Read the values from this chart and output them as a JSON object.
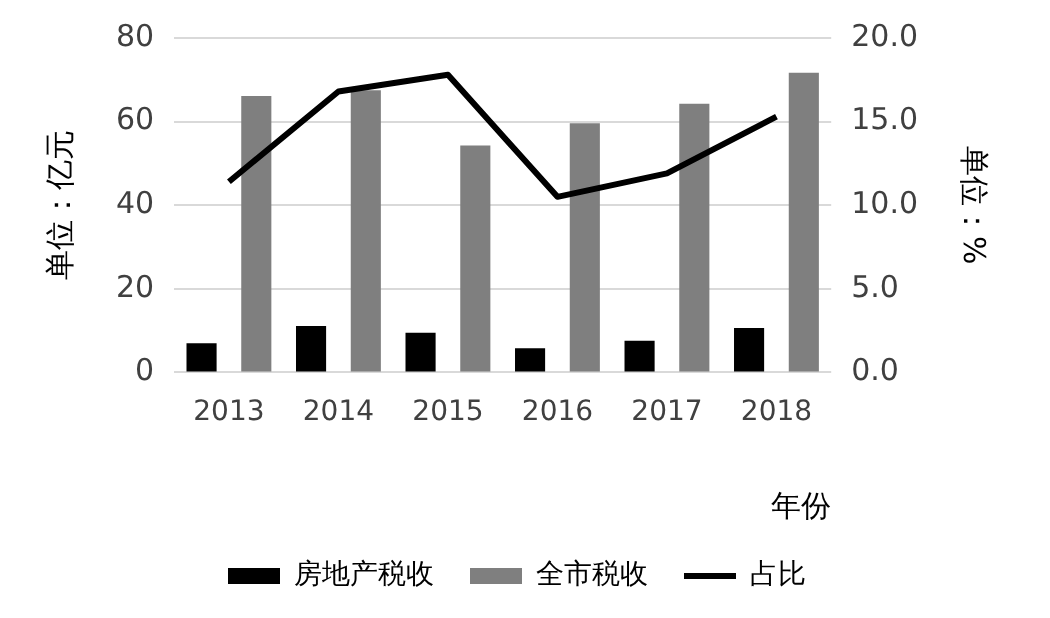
{
  "chart_data": {
    "type": "bar",
    "categories": [
      "2013",
      "2014",
      "2015",
      "2016",
      "2017",
      "2018"
    ],
    "xlabel": "年份",
    "ylabel": "单位：亿元",
    "y2label": "单位：%",
    "series": [
      {
        "name": "房地产税收",
        "color": "#000000",
        "values": [
          7.0,
          11.1,
          9.5,
          5.8,
          7.6,
          10.6
        ]
      },
      {
        "name": "全市税收",
        "color": "#7f7f7f",
        "values": [
          66.1,
          67.5,
          54.3,
          59.6,
          64.3,
          71.7
        ]
      },
      {
        "name": "占比",
        "type": "line",
        "axis": "y2",
        "color": "#000000",
        "values": [
          11.4,
          16.8,
          17.8,
          10.5,
          11.9,
          15.3
        ]
      }
    ],
    "ylim": [
      0,
      80
    ],
    "yticks": [
      0,
      20,
      40,
      60,
      80
    ],
    "y2lim": [
      0,
      20
    ],
    "y2ticks": [
      {
        "value": 0,
        "label": "0.0"
      },
      {
        "value": 5,
        "label": "5.0"
      },
      {
        "value": 10,
        "label": "10.0"
      },
      {
        "value": 15,
        "label": "15.0"
      },
      {
        "value": 20,
        "label": "20.0"
      }
    ],
    "grid": "y",
    "legend": "bottom",
    "marker": "none"
  }
}
